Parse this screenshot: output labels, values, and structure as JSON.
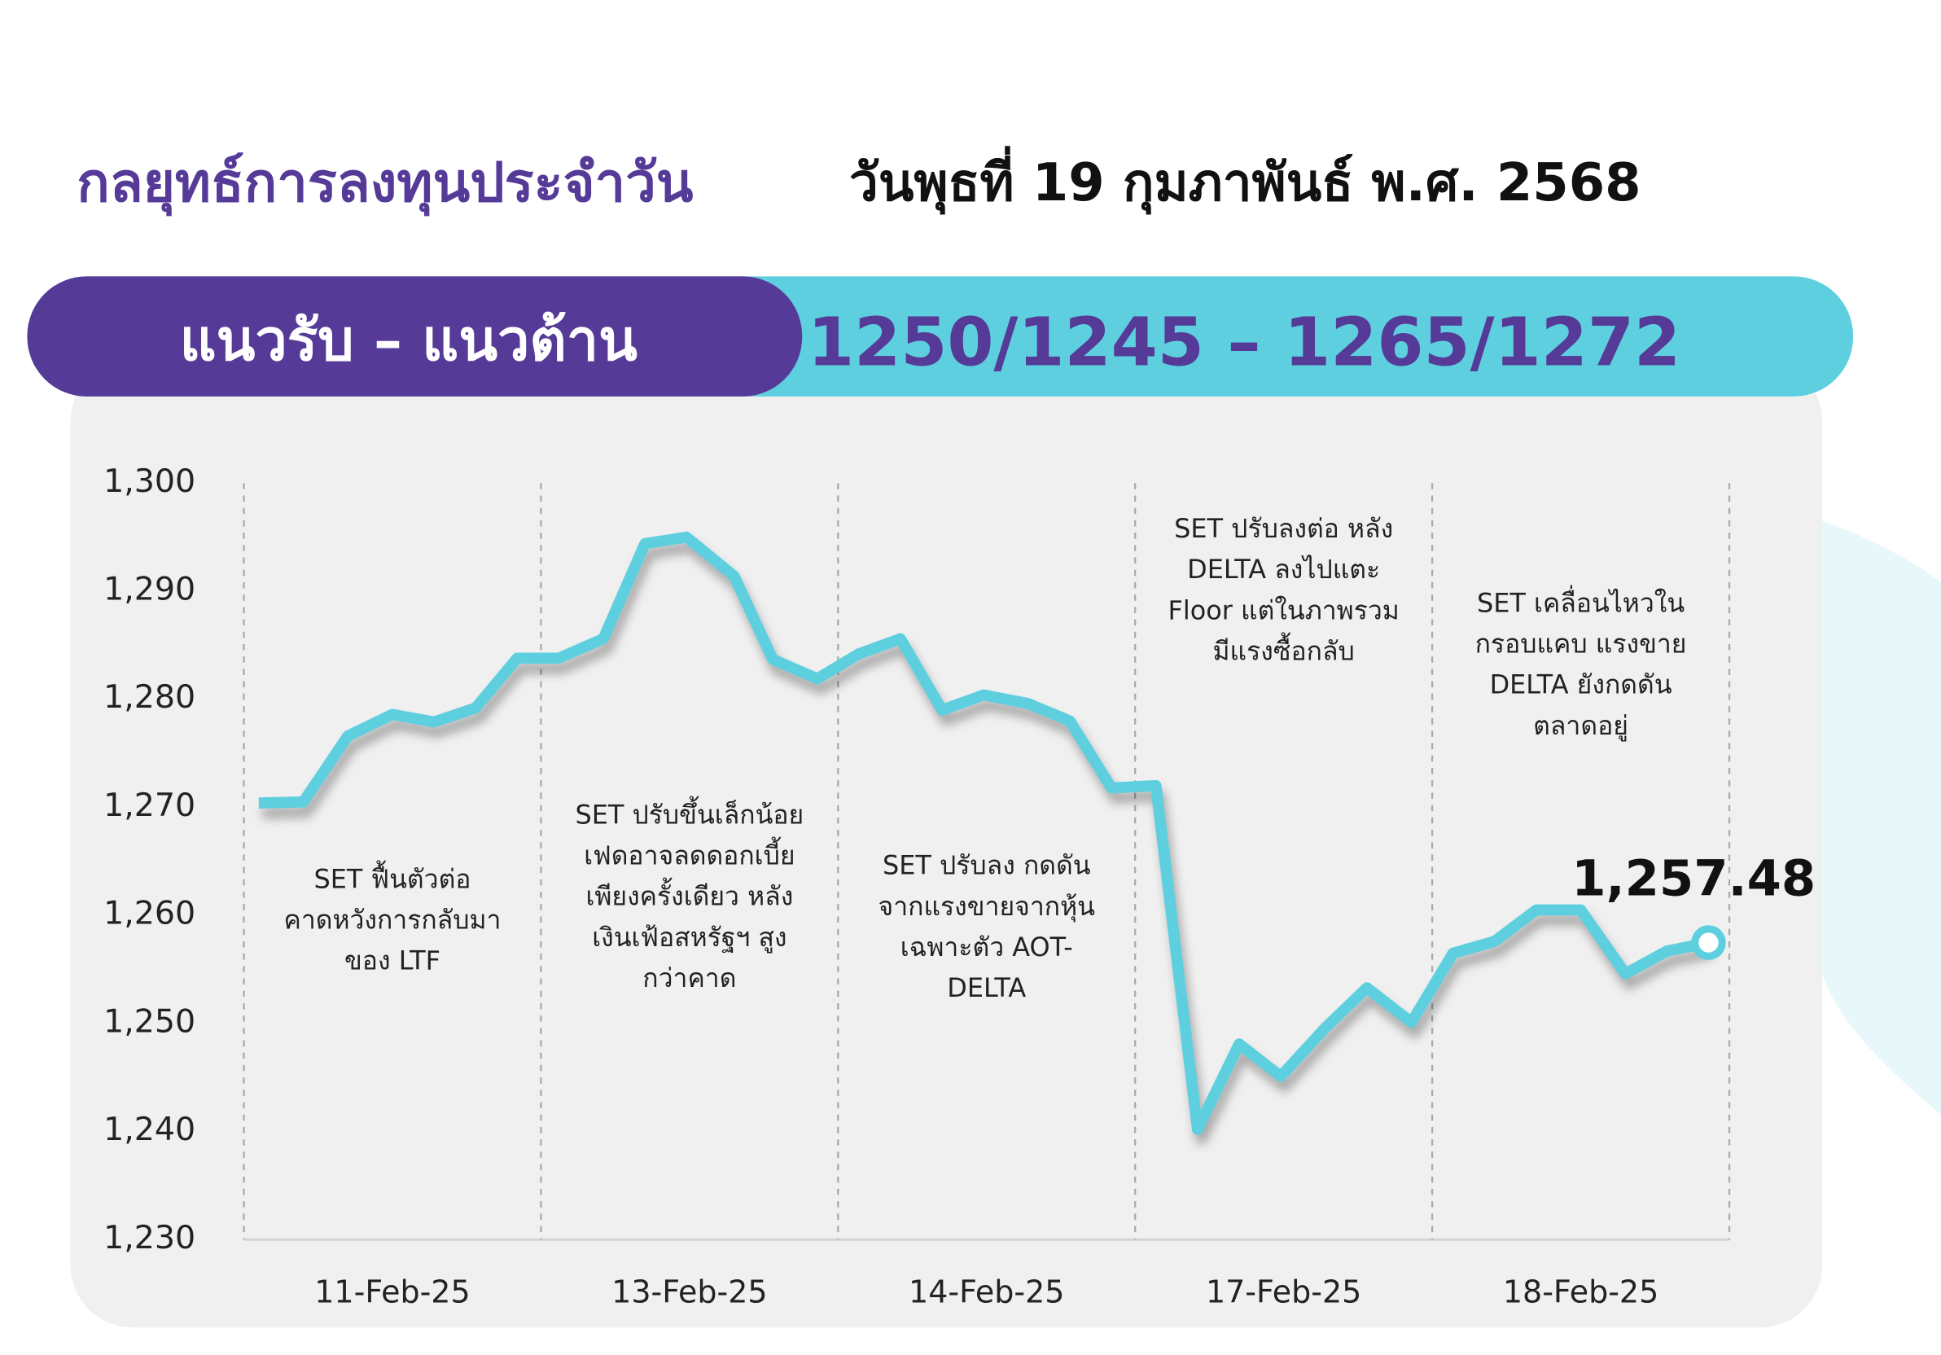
{
  "chart_data": {
    "type": "line",
    "title": "กลยุทธ์การลงทุนประจำวัน",
    "subtitle": "วันพุธที่ 19 กุมภาพันธ์ พ.ศ. 2568",
    "banner_label": "แนวรับ – แนวต้าน",
    "banner_value": "1250/1245 – 1265/1272",
    "categories": [
      "11-Feb-25",
      "13-Feb-25",
      "14-Feb-25",
      "17-Feb-25",
      "18-Feb-25"
    ],
    "annotations": [
      [
        "SET ฟื้นตัวต่อ",
        "คาดหวังการกลับมา",
        "ของ LTF"
      ],
      [
        "SET ปรับขึ้นเล็กน้อย",
        "เฟดอาจลดดอกเบี้ย",
        "เพียงครั้งเดียว หลัง",
        "เงินเฟ้อสหรัฐฯ สูง",
        "กว่าคาด"
      ],
      [
        "SET ปรับลง กดดัน",
        "จากแรงขายจากหุ้น",
        "เฉพาะตัว AOT-",
        "DELTA"
      ],
      [
        "SET ปรับลงต่อ หลัง",
        "DELTA ลงไปแตะ",
        "Floor แต่ในภาพรวม",
        "มีแรงซื้อกลับ"
      ],
      [
        "SET เคลื่อนไหวใน",
        "กรอบแคบ แรงขาย",
        "DELTA ยังกดดัน",
        "ตลาดอยู่"
      ]
    ],
    "x": [
      0.05,
      0.2,
      0.35,
      0.5,
      0.64,
      0.78,
      0.92,
      1.06,
      1.21,
      1.35,
      1.49,
      1.65,
      1.78,
      1.93,
      2.07,
      2.21,
      2.35,
      2.49,
      2.64,
      2.78,
      2.92,
      3.07,
      3.21,
      3.35,
      3.49,
      3.64,
      3.78,
      3.93,
      4.07,
      4.21,
      4.35,
      4.5,
      4.65,
      4.79,
      4.93
    ],
    "series": [
      {
        "color": "#5ecfdf",
        "values": [
          1270.4,
          1270.5,
          1276.6,
          1278.6,
          1277.9,
          1279.2,
          1283.8,
          1283.8,
          1285.6,
          1294.4,
          1295.0,
          1291.4,
          1283.7,
          1281.9,
          1284.2,
          1285.6,
          1279.0,
          1280.4,
          1279.6,
          1278.0,
          1271.8,
          1272.0,
          1240.2,
          1248.1,
          1245.1,
          1249.6,
          1253.3,
          1250.1,
          1256.5,
          1257.6,
          1260.5,
          1260.5,
          1254.6,
          1256.7,
          1257.48
        ],
        "value_labels": [
          null,
          null,
          null,
          null,
          null,
          null,
          null,
          null,
          null,
          null,
          null,
          null,
          null,
          null,
          null,
          null,
          null,
          null,
          null,
          null,
          null,
          null,
          null,
          null,
          null,
          null,
          null,
          null,
          null,
          null,
          null,
          null,
          null,
          null,
          "1,257.48"
        ]
      }
    ],
    "xlim": [
      0,
      5
    ],
    "xticks": [
      0,
      1,
      2,
      3,
      4,
      5
    ],
    "ylim": [
      1230,
      1300
    ],
    "yticks": [
      {
        "value": 1230,
        "label": "1,230"
      },
      {
        "value": 1240,
        "label": "1,240"
      },
      {
        "value": 1250,
        "label": "1,250"
      },
      {
        "value": 1260,
        "label": "1,260"
      },
      {
        "value": 1270,
        "label": "1,270"
      },
      {
        "value": 1280,
        "label": "1,280"
      },
      {
        "value": 1290,
        "label": "1,290"
      },
      {
        "value": 1300,
        "label": "1,300"
      }
    ],
    "grid": true
  }
}
